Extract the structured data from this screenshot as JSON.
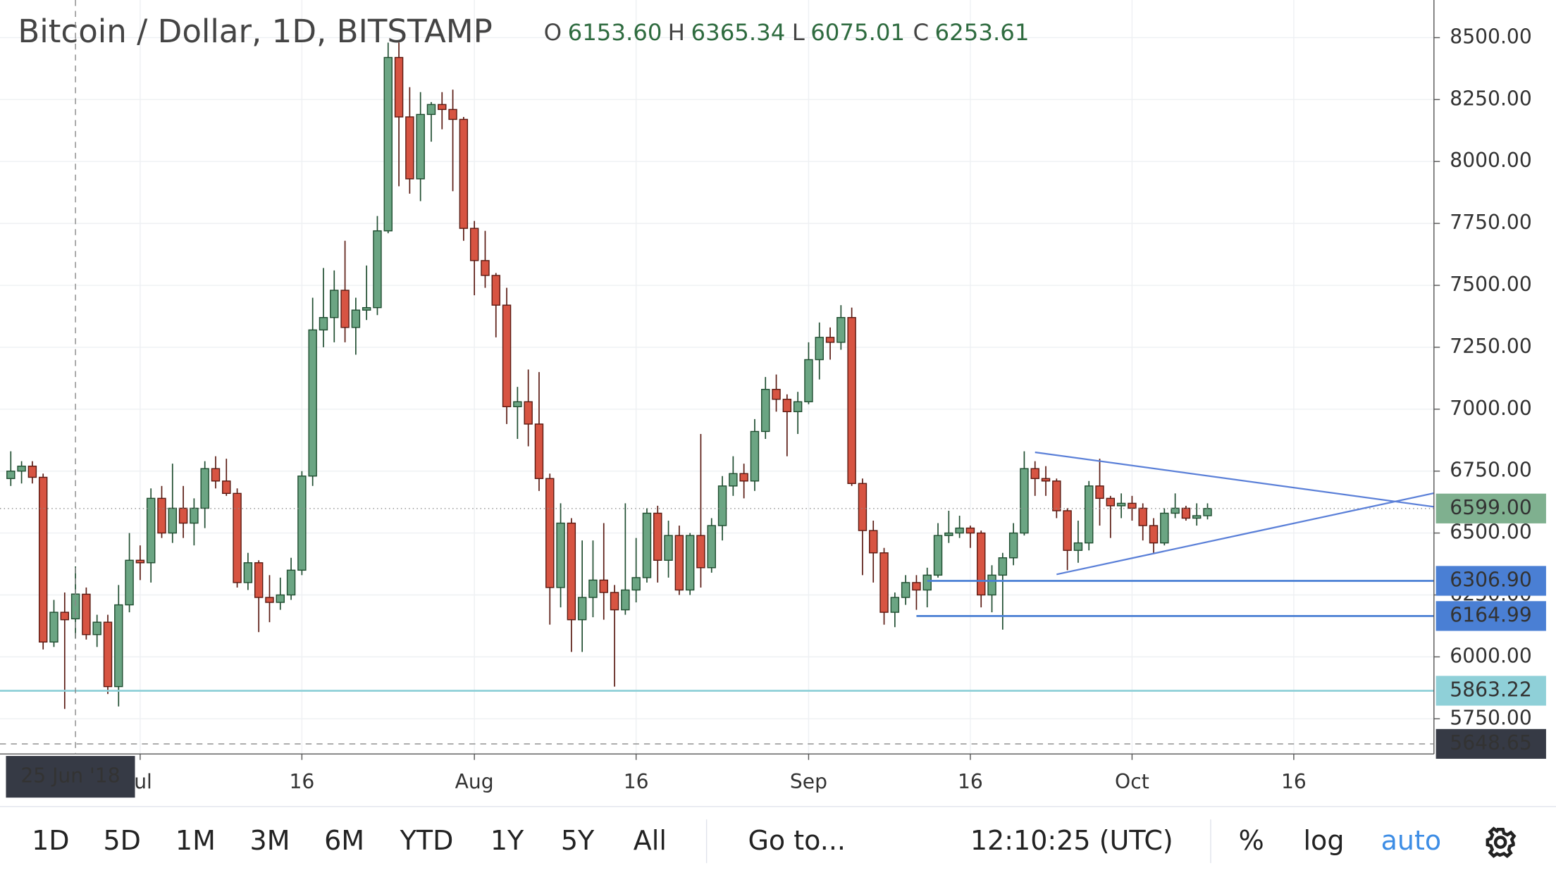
{
  "chart_data": {
    "type": "candlestick",
    "title": "Bitcoin / Dollar, 1D, BITSTAMP",
    "ohlc_legend": [
      {
        "label": "O",
        "value": "6153.60"
      },
      {
        "label": "H",
        "value": "6365.34"
      },
      {
        "label": "L",
        "value": "6075.01"
      },
      {
        "label": "C",
        "value": "6253.61"
      }
    ],
    "x": [
      "2018-06-19",
      "2018-06-20",
      "2018-06-21",
      "2018-06-22",
      "2018-06-23",
      "2018-06-24",
      "2018-06-25",
      "2018-06-26",
      "2018-06-27",
      "2018-06-28",
      "2018-06-29",
      "2018-06-30",
      "2018-07-01",
      "2018-07-02",
      "2018-07-03",
      "2018-07-04",
      "2018-07-05",
      "2018-07-06",
      "2018-07-07",
      "2018-07-08",
      "2018-07-09",
      "2018-07-10",
      "2018-07-11",
      "2018-07-12",
      "2018-07-13",
      "2018-07-14",
      "2018-07-15",
      "2018-07-16",
      "2018-07-17",
      "2018-07-18",
      "2018-07-19",
      "2018-07-20",
      "2018-07-21",
      "2018-07-22",
      "2018-07-23",
      "2018-07-24",
      "2018-07-25",
      "2018-07-26",
      "2018-07-27",
      "2018-07-28",
      "2018-07-29",
      "2018-07-30",
      "2018-07-31",
      "2018-08-01",
      "2018-08-02",
      "2018-08-03",
      "2018-08-04",
      "2018-08-05",
      "2018-08-06",
      "2018-08-07",
      "2018-08-08",
      "2018-08-09",
      "2018-08-10",
      "2018-08-11",
      "2018-08-12",
      "2018-08-13",
      "2018-08-14",
      "2018-08-15",
      "2018-08-16",
      "2018-08-17",
      "2018-08-18",
      "2018-08-19",
      "2018-08-20",
      "2018-08-21",
      "2018-08-22",
      "2018-08-23",
      "2018-08-24",
      "2018-08-25",
      "2018-08-26",
      "2018-08-27",
      "2018-08-28",
      "2018-08-29",
      "2018-08-30",
      "2018-08-31",
      "2018-09-01",
      "2018-09-02",
      "2018-09-03",
      "2018-09-04",
      "2018-09-05",
      "2018-09-06",
      "2018-09-07",
      "2018-09-08",
      "2018-09-09",
      "2018-09-10",
      "2018-09-11",
      "2018-09-12",
      "2018-09-13",
      "2018-09-14",
      "2018-09-15",
      "2018-09-16",
      "2018-09-17",
      "2018-09-18",
      "2018-09-19",
      "2018-09-20",
      "2018-09-21",
      "2018-09-22",
      "2018-09-23",
      "2018-09-24",
      "2018-09-25",
      "2018-09-26",
      "2018-09-27",
      "2018-09-28",
      "2018-09-29",
      "2018-09-30",
      "2018-10-01",
      "2018-10-02",
      "2018-10-03",
      "2018-10-04",
      "2018-10-05",
      "2018-10-06",
      "2018-10-07",
      "2018-10-08"
    ],
    "open": [
      6720,
      6750,
      6770,
      6725,
      6060,
      6180,
      6153.6,
      6253,
      6090,
      6140,
      5880,
      6210,
      6390,
      6380,
      6640,
      6500,
      6600,
      6540,
      6600,
      6760,
      6710,
      6660,
      6300,
      6380,
      6240,
      6220,
      6250,
      6350,
      6730,
      7320,
      7370,
      7480,
      7330,
      7400,
      7410,
      7720,
      8420,
      8180,
      7930,
      8190,
      8230,
      8210,
      8170,
      7730,
      7600,
      7540,
      7420,
      7010,
      7030,
      6940,
      6720,
      6280,
      6540,
      6150,
      6240,
      6310,
      6260,
      6190,
      6270,
      6320,
      6580,
      6390,
      6490,
      6270,
      6490,
      6360,
      6530,
      6690,
      6740,
      6710,
      6910,
      7080,
      7040,
      6990,
      7030,
      7200,
      7290,
      7270,
      7370,
      6700,
      6510,
      6420,
      6180,
      6240,
      6300,
      6270,
      6330,
      6490,
      6500,
      6520,
      6500,
      6250,
      6330,
      6400,
      6500,
      6760,
      6720,
      6710,
      6590,
      6430,
      6460,
      6690,
      6640,
      6610,
      6620,
      6600,
      6530,
      6460,
      6580,
      6600,
      6560,
      6570
    ],
    "high": [
      6830,
      6790,
      6790,
      6740,
      6230,
      6260,
      6365.34,
      6280,
      6170,
      6170,
      6290,
      6500,
      6450,
      6680,
      6690,
      6780,
      6690,
      6640,
      6790,
      6810,
      6800,
      6680,
      6420,
      6390,
      6330,
      6320,
      6400,
      6750,
      7450,
      7570,
      7560,
      7680,
      7450,
      7580,
      7780,
      8480,
      8480,
      8300,
      8280,
      8240,
      8280,
      8290,
      8180,
      7760,
      7720,
      7550,
      7490,
      7090,
      7160,
      7150,
      6740,
      6620,
      6560,
      6470,
      6470,
      6540,
      6290,
      6620,
      6480,
      6600,
      6610,
      6550,
      6530,
      6500,
      6900,
      6560,
      6730,
      6810,
      6780,
      6960,
      7130,
      7140,
      7060,
      7070,
      7270,
      7350,
      7330,
      7420,
      7410,
      6720,
      6550,
      6440,
      6260,
      6330,
      6330,
      6360,
      6540,
      6590,
      6570,
      6530,
      6510,
      6370,
      6420,
      6540,
      6830,
      6790,
      6770,
      6720,
      6600,
      6550,
      6710,
      6800,
      6650,
      6660,
      6650,
      6620,
      6560,
      6600,
      6660,
      6610,
      6620,
      6620
    ],
    "low": [
      6690,
      6700,
      6700,
      6030,
      6040,
      5790,
      6075.01,
      6070,
      6040,
      5850,
      5800,
      6180,
      6310,
      6300,
      6480,
      6460,
      6480,
      6450,
      6520,
      6680,
      6650,
      6280,
      6270,
      6100,
      6140,
      6190,
      6230,
      6330,
      6690,
      7250,
      7270,
      7270,
      7220,
      7360,
      7380,
      7710,
      7900,
      7870,
      7840,
      8080,
      8130,
      7880,
      7680,
      7460,
      7490,
      7290,
      6940,
      6880,
      6850,
      6670,
      6130,
      6200,
      6020,
      6020,
      6160,
      6150,
      5880,
      6170,
      6220,
      6300,
      6300,
      6320,
      6250,
      6250,
      6280,
      6340,
      6470,
      6650,
      6640,
      6670,
      6880,
      6990,
      6810,
      6900,
      7020,
      7120,
      7200,
      7240,
      6690,
      6330,
      6300,
      6130,
      6120,
      6210,
      6190,
      6200,
      6320,
      6460,
      6480,
      6440,
      6200,
      6180,
      6110,
      6370,
      6490,
      6650,
      6650,
      6560,
      6350,
      6380,
      6430,
      6530,
      6480,
      6560,
      6550,
      6470,
      6420,
      6450,
      6560,
      6550,
      6530,
      6555
    ],
    "close": [
      6750,
      6770,
      6725,
      6060,
      6180,
      6150,
      6253.61,
      6090,
      6140,
      5880,
      6210,
      6390,
      6380,
      6640,
      6500,
      6600,
      6540,
      6600,
      6760,
      6710,
      6660,
      6300,
      6380,
      6240,
      6220,
      6250,
      6350,
      6730,
      7320,
      7370,
      7480,
      7330,
      7400,
      7410,
      7720,
      8420,
      8180,
      7930,
      8190,
      8230,
      8210,
      8170,
      7730,
      7600,
      7540,
      7420,
      7010,
      7030,
      6940,
      6720,
      6280,
      6540,
      6150,
      6240,
      6310,
      6260,
      6190,
      6270,
      6320,
      6580,
      6390,
      6490,
      6270,
      6490,
      6360,
      6530,
      6690,
      6740,
      6710,
      6910,
      7080,
      7040,
      6990,
      7030,
      7200,
      7290,
      7270,
      7370,
      6700,
      6510,
      6420,
      6180,
      6240,
      6300,
      6270,
      6330,
      6490,
      6500,
      6520,
      6500,
      6250,
      6330,
      6400,
      6500,
      6760,
      6720,
      6710,
      6590,
      6430,
      6460,
      6690,
      6640,
      6610,
      6620,
      6600,
      6530,
      6460,
      6580,
      6600,
      6560,
      6570,
      6599
    ],
    "up_color": "#6ba583",
    "down_color": "#d75442",
    "xlim": [
      "2018-06-18",
      "2018-10-29"
    ],
    "xticks": [
      {
        "value": "2018-07-01",
        "label": "Jul"
      },
      {
        "value": "2018-07-16",
        "label": "16"
      },
      {
        "value": "2018-08-01",
        "label": "Aug"
      },
      {
        "value": "2018-08-16",
        "label": "16"
      },
      {
        "value": "2018-09-01",
        "label": "Sep"
      },
      {
        "value": "2018-09-16",
        "label": "16"
      },
      {
        "value": "2018-10-01",
        "label": "Oct"
      },
      {
        "value": "2018-10-16",
        "label": "16"
      }
    ],
    "ylim": [
      5608,
      8652
    ],
    "yticks": [
      {
        "value": 5750,
        "label": "5750.00"
      },
      {
        "value": 6000,
        "label": "6000.00"
      },
      {
        "value": 6250,
        "label": "6250.00"
      },
      {
        "value": 6500,
        "label": "6500.00"
      },
      {
        "value": 6750,
        "label": "6750.00"
      },
      {
        "value": 7000,
        "label": "7000.00"
      },
      {
        "value": 7250,
        "label": "7250.00"
      },
      {
        "value": 7500,
        "label": "7500.00"
      },
      {
        "value": 7750,
        "label": "7750.00"
      },
      {
        "value": 8000,
        "label": "8000.00"
      },
      {
        "value": 8250,
        "label": "8250.00"
      },
      {
        "value": 8500,
        "label": "8500.00"
      }
    ],
    "grid": true,
    "trend_lines": [
      {
        "x": [
          "2018-09-22",
          "2018-10-29"
        ],
        "y": [
          6826,
          6606
        ],
        "color": "#5b80d8"
      },
      {
        "x": [
          "2018-09-24",
          "2018-10-29"
        ],
        "y": [
          6333,
          6661
        ],
        "color": "#5b80d8"
      }
    ],
    "hlines": [
      {
        "from": "2018-09-12",
        "value": 6306.9,
        "label": "6306.90",
        "color": "#4a7fd4"
      },
      {
        "from": "2018-09-11",
        "value": 6164.99,
        "label": "6164.99",
        "color": "#4a7fd4"
      },
      {
        "from": "2018-06-18",
        "value": 5863.22,
        "label": "5863.22",
        "color": "#8fd0d8"
      }
    ],
    "last_price": {
      "value": 6599,
      "label": "6599.00",
      "color": "#7fb08f"
    },
    "crosshair": {
      "x": "2018-06-25",
      "value": 5648.65,
      "label": "5648.65",
      "date_label": "25 Jun '18"
    }
  },
  "toolbar": {
    "ranges": [
      "1D",
      "5D",
      "1M",
      "3M",
      "6M",
      "YTD",
      "1Y",
      "5Y",
      "All"
    ],
    "goto": "Go to...",
    "clock": "12:10:25 (UTC)",
    "percent": "%",
    "log": "log",
    "auto": "auto"
  }
}
